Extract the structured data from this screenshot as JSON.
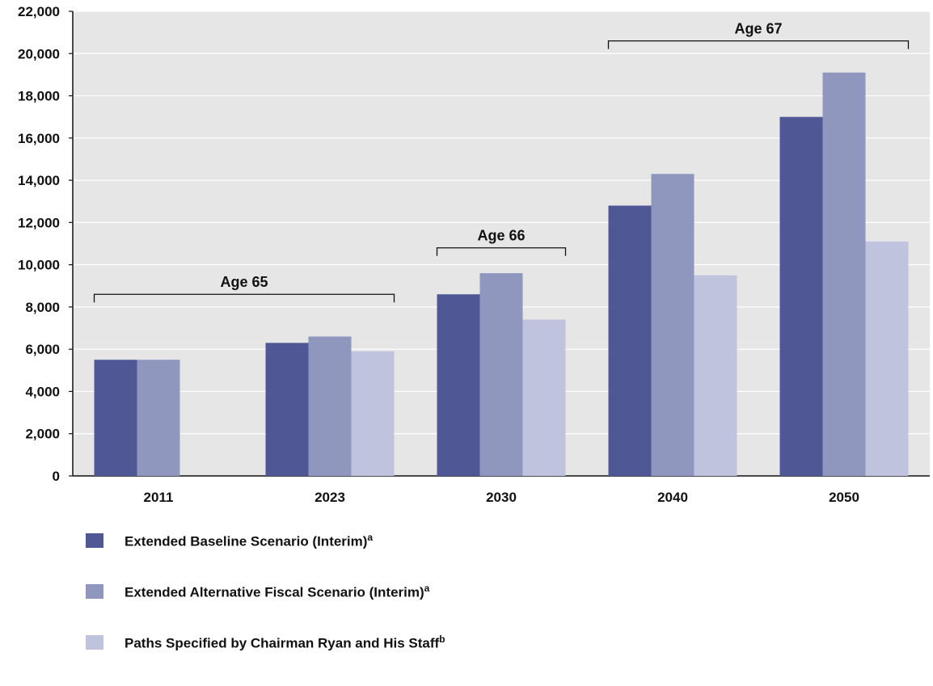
{
  "chart_data": {
    "type": "bar",
    "categories": [
      "2011",
      "2023",
      "2030",
      "2040",
      "2050"
    ],
    "series": [
      {
        "name": "Extended Baseline Scenario (Interim)",
        "footnote": "a",
        "color": "#4f5894",
        "values": [
          5500,
          6300,
          8600,
          12800,
          17000
        ]
      },
      {
        "name": "Extended Alternative Fiscal Scenario (Interim)",
        "footnote": "a",
        "color": "#8f97bf",
        "values": [
          5500,
          6600,
          9600,
          14300,
          19100
        ]
      },
      {
        "name": "Paths Specified by Chairman Ryan and His Staff",
        "footnote": "b",
        "color": "#c0c3dd",
        "values": [
          null,
          5900,
          7400,
          9500,
          11100
        ]
      }
    ],
    "ylim": [
      0,
      22000
    ],
    "yticks": [
      0,
      2000,
      4000,
      6000,
      8000,
      10000,
      12000,
      14000,
      16000,
      18000,
      20000,
      22000
    ],
    "ytick_labels": [
      "0",
      "2,000",
      "4,000",
      "6,000",
      "8,000",
      "10,000",
      "12,000",
      "14,000",
      "16,000",
      "18,000",
      "20,000",
      "22,000"
    ],
    "grid": true,
    "plot_background": "#e6e6e6",
    "legend_placement": "bottom",
    "annotations": [
      {
        "label": "Age 65",
        "from_category": "2011",
        "to_category": "2023",
        "y": 8600
      },
      {
        "label": "Age 66",
        "from_category": "2030",
        "to_category": "2030",
        "y": 10800
      },
      {
        "label": "Age 67",
        "from_category": "2040",
        "to_category": "2050",
        "y": 20600
      }
    ]
  }
}
